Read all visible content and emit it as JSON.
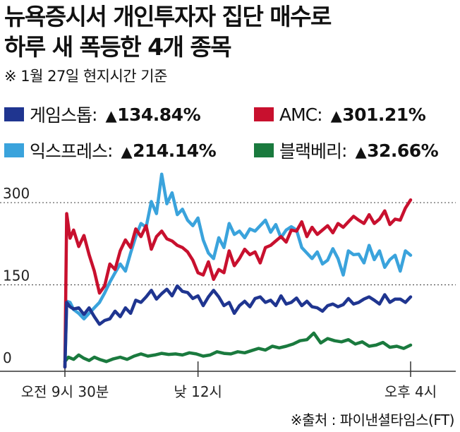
{
  "title_lines": [
    "뉴욕증시서 개인투자자 집단 매수로",
    "하루 새 폭등한  4개 종목"
  ],
  "subtitle": "※ 1월 27일 현지시간 기준",
  "source": "※출처 : 파이낸셜타임스(FT)",
  "chart_data": {
    "type": "line",
    "title": "뉴욕증시서 개인투자자 집단 매수로 하루 새 폭등한  4개 종목",
    "ylim": [
      0,
      340
    ],
    "yticks": [
      0,
      150,
      300
    ],
    "xlim": [
      0,
      100
    ],
    "xticks": [
      {
        "label": "오전 9시 30분",
        "x": 0
      },
      {
        "label": "낮 12시",
        "x": 38.5
      },
      {
        "label": "오후 4시",
        "x": 100
      }
    ],
    "grid": "dotted horizontal at y ticks",
    "series": [
      {
        "name": "게임스톱",
        "change": "134.84%",
        "color": "#1f3590",
        "x": [
          0,
          0.5,
          1.5,
          2.5,
          4,
          5.5,
          7,
          8.5,
          10,
          11.5,
          13,
          14.5,
          16,
          17.5,
          19,
          20.5,
          22,
          23.5,
          25,
          26.5,
          28,
          29.5,
          31,
          32.5,
          34,
          35.5,
          37,
          38.5,
          40,
          41.5,
          43,
          44.5,
          46,
          47.5,
          49,
          50.5,
          52,
          53.5,
          55,
          56.5,
          58,
          59.5,
          61,
          62.5,
          64,
          65.5,
          67,
          68.5,
          70,
          71.5,
          73,
          74.5,
          76,
          77.5,
          79,
          80.5,
          82,
          83.5,
          85,
          86.5,
          88,
          89.5,
          91,
          92.5,
          94,
          95.5,
          97,
          98.5,
          100
        ],
        "y": [
          0,
          118,
          110,
          106,
          108,
          96,
          108,
          92,
          78,
          85,
          88,
          102,
          92,
          108,
          98,
          122,
          118,
          128,
          140,
          124,
          134,
          142,
          130,
          148,
          138,
          136,
          125,
          130,
          112,
          128,
          140,
          128,
          112,
          118,
          98,
          112,
          120,
          110,
          125,
          128,
          118,
          122,
          112,
          130,
          115,
          118,
          126,
          112,
          120,
          110,
          108,
          102,
          112,
          115,
          110,
          114,
          125,
          115,
          118,
          124,
          128,
          122,
          115,
          132,
          118,
          124,
          124,
          118,
          128
        ]
      },
      {
        "name": "AMC",
        "change": "301.21%",
        "color": "#c8102e",
        "x": [
          0,
          0.5,
          1.5,
          2.5,
          4,
          5.5,
          7,
          8.5,
          10,
          11.5,
          13,
          14.5,
          16,
          17.5,
          19,
          20.5,
          22,
          23.5,
          25,
          26.5,
          28,
          29.5,
          31,
          32.5,
          34,
          35.5,
          37,
          38.5,
          40,
          41.5,
          43,
          44.5,
          46,
          47.5,
          49,
          50.5,
          52,
          53.5,
          55,
          56.5,
          58,
          59.5,
          61,
          62.5,
          64,
          65.5,
          67,
          68.5,
          70,
          71.5,
          73,
          74.5,
          76,
          77.5,
          79,
          80.5,
          82,
          83.5,
          85,
          86.5,
          88,
          89.5,
          91,
          92.5,
          94,
          95.5,
          97,
          98.5,
          100
        ],
        "y": [
          0,
          280,
          235,
          250,
          220,
          240,
          205,
          175,
          135,
          148,
          188,
          178,
          212,
          232,
          218,
          252,
          238,
          258,
          215,
          238,
          248,
          234,
          230,
          222,
          218,
          210,
          195,
          172,
          168,
          192,
          160,
          178,
          172,
          212,
          185,
          198,
          215,
          205,
          210,
          190,
          218,
          222,
          230,
          238,
          228,
          250,
          248,
          265,
          238,
          255,
          242,
          250,
          258,
          245,
          262,
          255,
          265,
          275,
          268,
          262,
          278,
          262,
          270,
          285,
          260,
          270,
          268,
          290,
          305
        ]
      },
      {
        "name": "익스프레스",
        "change": "214.14%",
        "color": "#3aa3dc",
        "x": [
          0,
          0.5,
          1.5,
          2.5,
          4,
          5.5,
          7,
          8.5,
          10,
          11.5,
          13,
          14.5,
          16,
          17.5,
          19,
          20.5,
          22,
          23.5,
          25,
          26.5,
          28,
          29.5,
          31,
          32.5,
          34,
          35.5,
          37,
          38.5,
          40,
          41.5,
          43,
          44.5,
          46,
          47.5,
          49,
          50.5,
          52,
          53.5,
          55,
          56.5,
          58,
          59.5,
          61,
          62.5,
          64,
          65.5,
          67,
          68.5,
          70,
          71.5,
          73,
          74.5,
          76,
          77.5,
          79,
          80.5,
          82,
          83.5,
          85,
          86.5,
          88,
          89.5,
          91,
          92.5,
          94,
          95.5,
          97,
          98.5,
          100
        ],
        "y": [
          0,
          120,
          118,
          105,
          98,
          88,
          98,
          108,
          118,
          135,
          155,
          172,
          188,
          175,
          208,
          238,
          262,
          255,
          302,
          280,
          352,
          298,
          318,
          278,
          288,
          268,
          258,
          272,
          232,
          208,
          198,
          236,
          218,
          262,
          242,
          248,
          236,
          252,
          248,
          258,
          268,
          246,
          260,
          236,
          250,
          256,
          250,
          218,
          208,
          198,
          210,
          188,
          195,
          216,
          198,
          168,
          212,
          205,
          206,
          190,
          222,
          196,
          212,
          182,
          196,
          204,
          175,
          212,
          204
        ]
      },
      {
        "name": "블랙베리",
        "change": "32.66%",
        "color": "#1a7a3e",
        "x": [
          0,
          1,
          2.5,
          4,
          5.5,
          7,
          8.5,
          10,
          12,
          14,
          16,
          18,
          20,
          22,
          24,
          26,
          28,
          30,
          32,
          34,
          36,
          38,
          40,
          42,
          44,
          46,
          48,
          50,
          52,
          54,
          56,
          58,
          60,
          62,
          64,
          66,
          68,
          70,
          72,
          74,
          76,
          78,
          80,
          82,
          84,
          86,
          88,
          90,
          92,
          94,
          96,
          98,
          100
        ],
        "y": [
          10,
          18,
          14,
          22,
          16,
          12,
          18,
          14,
          10,
          15,
          18,
          14,
          20,
          24,
          20,
          22,
          25,
          23,
          24,
          22,
          26,
          24,
          20,
          22,
          28,
          25,
          24,
          28,
          26,
          30,
          34,
          31,
          38,
          35,
          38,
          42,
          48,
          50,
          62,
          44,
          52,
          48,
          46,
          50,
          42,
          46,
          38,
          40,
          45,
          36,
          38,
          34,
          40
        ]
      }
    ]
  }
}
